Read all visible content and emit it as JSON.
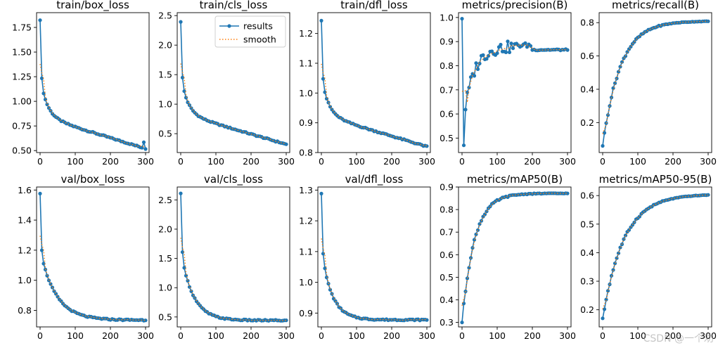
{
  "colors": {
    "results": "#1f77b4",
    "smooth": "#ff7f0e"
  },
  "legend": {
    "results": "results",
    "smooth": "smooth"
  },
  "watermark": "CSDN @一个劝",
  "chart_data": [
    {
      "type": "line",
      "title": "train/box_loss",
      "xlim": [
        -10,
        310
      ],
      "ylim": [
        0.48,
        1.9
      ],
      "xticks": [
        0,
        100,
        200,
        300
      ],
      "yticks": [
        0.5,
        0.75,
        1.0,
        1.25,
        1.5,
        1.75
      ],
      "ytick_labels": [
        "0.50",
        "0.75",
        "1.00",
        "1.25",
        "1.50",
        "1.75"
      ],
      "shape": "decay",
      "start": 1.83,
      "end": 0.52,
      "k": 0.12,
      "spike_end": 0.585
    },
    {
      "type": "line",
      "title": "train/cls_loss",
      "xlim": [
        -10,
        310
      ],
      "ylim": [
        0.18,
        2.55
      ],
      "xticks": [
        0,
        100,
        200,
        300
      ],
      "yticks": [
        0.5,
        1.0,
        1.5,
        2.0,
        2.5
      ],
      "ytick_labels": [
        "0.5",
        "1.0",
        "1.5",
        "2.0",
        "2.5"
      ],
      "shape": "decay",
      "start": 2.4,
      "end": 0.32,
      "k": 0.1,
      "legend": true
    },
    {
      "type": "line",
      "title": "train/dfl_loss",
      "xlim": [
        -10,
        310
      ],
      "ylim": [
        0.8,
        1.27
      ],
      "xticks": [
        0,
        100,
        200,
        300
      ],
      "yticks": [
        0.8,
        0.9,
        1.0,
        1.1,
        1.2
      ],
      "ytick_labels": [
        "0.8",
        "0.9",
        "1.0",
        "1.1",
        "1.2"
      ],
      "shape": "decay",
      "start": 1.245,
      "end": 0.82,
      "k": 0.1
    },
    {
      "type": "line",
      "title": "metrics/precision(B)",
      "xlim": [
        -10,
        310
      ],
      "ylim": [
        0.44,
        1.02
      ],
      "xticks": [
        0,
        100,
        200,
        300
      ],
      "yticks": [
        0.5,
        0.6,
        0.7,
        0.8,
        0.9,
        1.0
      ],
      "ytick_labels": [
        "0.5",
        "0.6",
        "0.7",
        "0.8",
        "0.9",
        "1.0"
      ],
      "shape": "precision"
    },
    {
      "type": "line",
      "title": "metrics/recall(B)",
      "xlim": [
        -10,
        310
      ],
      "ylim": [
        0.02,
        0.86
      ],
      "xticks": [
        0,
        100,
        200,
        300
      ],
      "yticks": [
        0.2,
        0.4,
        0.6,
        0.8
      ],
      "ytick_labels": [
        "0.2",
        "0.4",
        "0.6",
        "0.8"
      ],
      "shape": "rise",
      "start": 0.06,
      "end": 0.81,
      "tau": 50
    },
    {
      "type": "line",
      "title": "val/box_loss",
      "xlim": [
        -10,
        310
      ],
      "ylim": [
        0.69,
        1.62
      ],
      "xticks": [
        0,
        100,
        200,
        300
      ],
      "yticks": [
        0.8,
        1.0,
        1.2,
        1.4,
        1.6
      ],
      "ytick_labels": [
        "0.8",
        "1.0",
        "1.2",
        "1.4",
        "1.6"
      ],
      "shape": "decay",
      "start": 1.58,
      "end": 0.735,
      "k": 0.2,
      "tau": 45
    },
    {
      "type": "line",
      "title": "val/cls_loss",
      "xlim": [
        -10,
        310
      ],
      "ylim": [
        0.33,
        2.72
      ],
      "xticks": [
        0,
        100,
        200,
        300
      ],
      "yticks": [
        0.5,
        1.0,
        1.5,
        2.0,
        2.5
      ],
      "ytick_labels": [
        "0.5",
        "1.0",
        "1.5",
        "2.0",
        "2.5"
      ],
      "shape": "decay",
      "start": 2.6,
      "end": 0.44,
      "k": 0.1,
      "tau": 35
    },
    {
      "type": "line",
      "title": "val/dfl_loss",
      "xlim": [
        -10,
        310
      ],
      "ylim": [
        0.855,
        1.31
      ],
      "xticks": [
        0,
        100,
        200,
        300
      ],
      "yticks": [
        0.9,
        1.0,
        1.1,
        1.2,
        1.3
      ],
      "ytick_labels": [
        "0.9",
        "1.0",
        "1.1",
        "1.2",
        "1.3"
      ],
      "shape": "decay",
      "start": 1.29,
      "end": 0.878,
      "k": 0.15,
      "tau": 30
    },
    {
      "type": "line",
      "title": "metrics/mAP50(B)",
      "xlim": [
        -10,
        310
      ],
      "ylim": [
        0.28,
        0.9
      ],
      "xticks": [
        0,
        100,
        200,
        300
      ],
      "yticks": [
        0.3,
        0.4,
        0.5,
        0.6,
        0.7,
        0.8,
        0.9
      ],
      "ytick_labels": [
        "0.3",
        "0.4",
        "0.5",
        "0.6",
        "0.7",
        "0.8",
        "0.9"
      ],
      "shape": "rise",
      "start": 0.3,
      "end": 0.872,
      "tau": 35
    },
    {
      "type": "line",
      "title": "metrics/mAP50-95(B)",
      "xlim": [
        -10,
        310
      ],
      "ylim": [
        0.14,
        0.63
      ],
      "xticks": [
        0,
        100,
        200,
        300
      ],
      "yticks": [
        0.2,
        0.3,
        0.4,
        0.5,
        0.6
      ],
      "ytick_labels": [
        "0.2",
        "0.3",
        "0.4",
        "0.5",
        "0.6"
      ],
      "shape": "rise",
      "start": 0.17,
      "end": 0.605,
      "tau": 60
    }
  ]
}
